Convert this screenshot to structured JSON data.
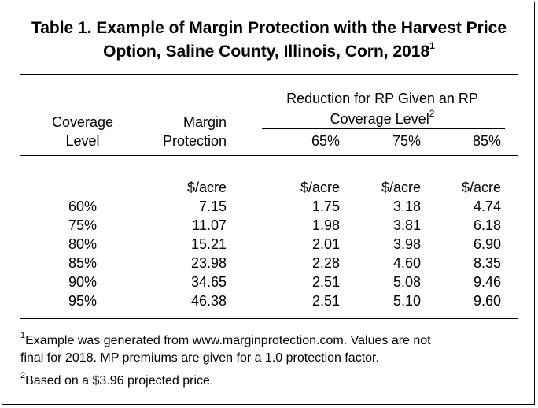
{
  "title": {
    "line1": "Table 1. Example of Margin Protection with the Harvest Price",
    "line2": "Option, Saline County, Illinois, Corn, 2018",
    "line2_sup": "1"
  },
  "headers": {
    "group_line1": "Reduction for RP Given an RP",
    "group_line2": "Coverage Level",
    "group_sup": "2",
    "coverage_line1": "Coverage",
    "coverage_line2": "Level",
    "margin_line1": "Margin",
    "margin_line2": "Protection",
    "rp65": "65%",
    "rp75": "75%",
    "rp85": "85%"
  },
  "units": {
    "margin": "$/acre",
    "rp65": "$/acre",
    "rp75": "$/acre",
    "rp85": "$/acre"
  },
  "rows": [
    {
      "level": "60%",
      "margin": "7.15",
      "rp65": "1.75",
      "rp75": "3.18",
      "rp85": "4.74"
    },
    {
      "level": "75%",
      "margin": "11.07",
      "rp65": "1.98",
      "rp75": "3.81",
      "rp85": "6.18"
    },
    {
      "level": "80%",
      "margin": "15.21",
      "rp65": "2.01",
      "rp75": "3.98",
      "rp85": "6.90"
    },
    {
      "level": "85%",
      "margin": "23.98",
      "rp65": "2.28",
      "rp75": "4.60",
      "rp85": "8.35"
    },
    {
      "level": "90%",
      "margin": "34.65",
      "rp65": "2.51",
      "rp75": "5.08",
      "rp85": "9.46"
    },
    {
      "level": "95%",
      "margin": "46.38",
      "rp65": "2.51",
      "rp75": "5.10",
      "rp85": "9.60"
    }
  ],
  "footnotes": {
    "fn1_marker": "1",
    "fn1_line1": "Example was generated from www.marginprotection.com.  Values are not",
    "fn1_line2": "final for 2018. MP premiums are given for a 1.0 protection factor.",
    "fn2_marker": "2",
    "fn2_text": "Based on a $3.96 projected price."
  }
}
